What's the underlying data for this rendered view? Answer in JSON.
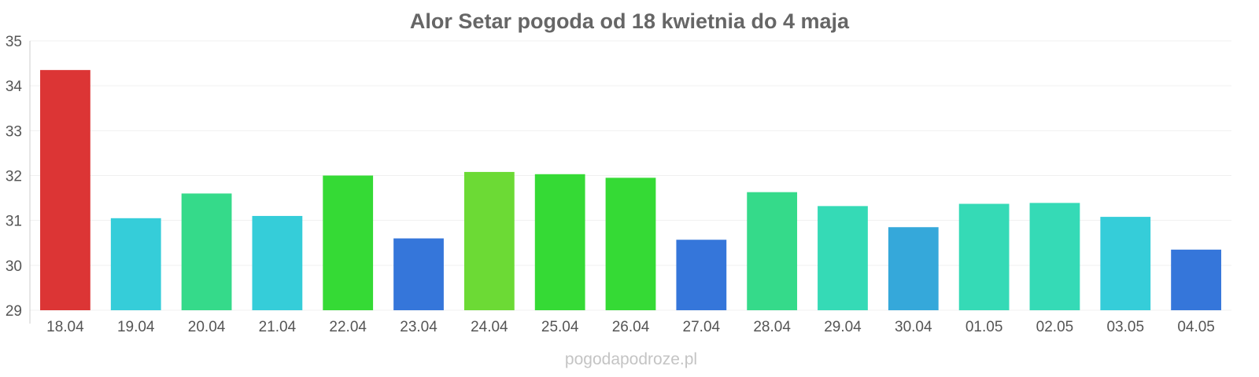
{
  "watermark": "pogodapodroze.pl",
  "chart_data": {
    "type": "bar",
    "title": "Alor Setar pogoda od 18 kwietnia do 4 maja",
    "xlabel": "",
    "ylabel": "",
    "ylim": [
      29,
      35
    ],
    "yticks": [
      29,
      30,
      31,
      32,
      33,
      34,
      35
    ],
    "grid": true,
    "categories": [
      "18.04",
      "19.04",
      "20.04",
      "21.04",
      "22.04",
      "23.04",
      "24.04",
      "25.04",
      "26.04",
      "27.04",
      "28.04",
      "29.04",
      "30.04",
      "01.05",
      "02.05",
      "03.05",
      "04.05"
    ],
    "values": [
      34.35,
      31.05,
      31.6,
      31.1,
      32.0,
      30.6,
      32.08,
      32.03,
      31.95,
      30.57,
      31.63,
      31.32,
      30.85,
      31.37,
      31.39,
      31.08,
      30.35
    ],
    "colors": [
      "#dc3535",
      "#35cdd9",
      "#35da8a",
      "#35cdd9",
      "#35da35",
      "#3576da",
      "#6cda35",
      "#35da35",
      "#35da35",
      "#3576da",
      "#35da8a",
      "#35dab6",
      "#35a8da",
      "#35dab6",
      "#35dab6",
      "#35cdd9",
      "#3576da"
    ]
  }
}
